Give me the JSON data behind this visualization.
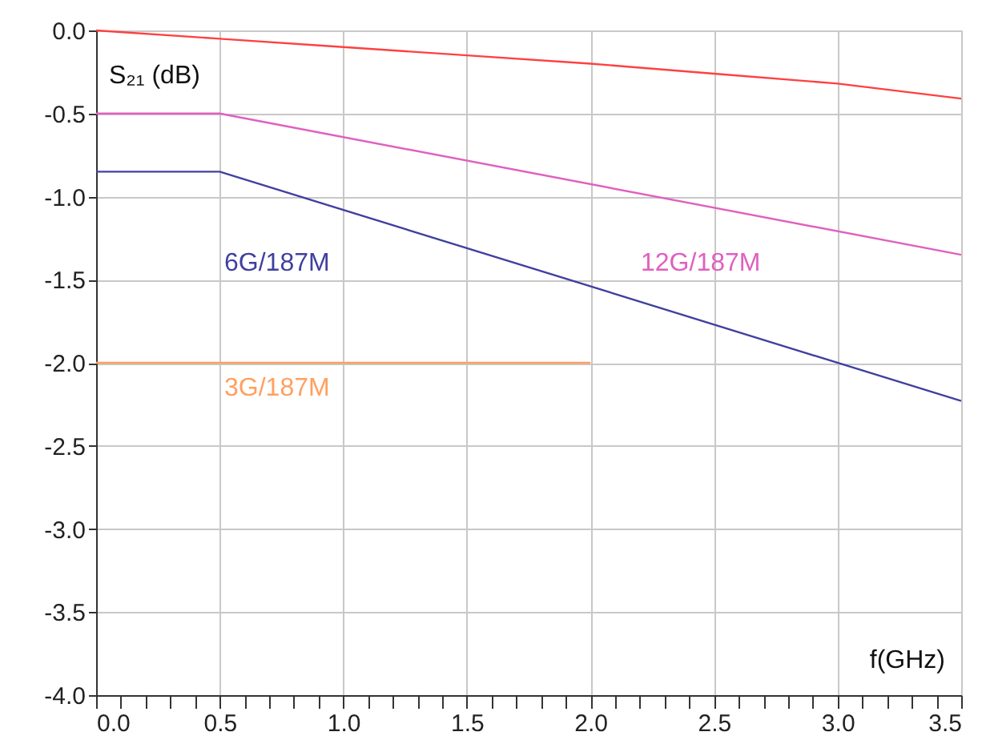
{
  "chart_data": {
    "type": "line",
    "xlabel": "f(GHz)",
    "ylabel": "S₂₁ (dB)",
    "xlim": [
      0,
      3.5
    ],
    "ylim": [
      -4.0,
      0.0
    ],
    "xticks": [
      {
        "value": 0,
        "label": "0.0"
      },
      {
        "value": 0.1,
        "label": null
      },
      {
        "value": 0.2,
        "label": null
      },
      {
        "value": 0.3,
        "label": null
      },
      {
        "value": 0.4,
        "label": null
      },
      {
        "value": 0.5,
        "label": "0.5"
      },
      {
        "value": 0.6,
        "label": null
      },
      {
        "value": 0.7,
        "label": null
      },
      {
        "value": 0.8,
        "label": null
      },
      {
        "value": 0.9,
        "label": null
      },
      {
        "value": 1,
        "label": "1.0"
      },
      {
        "value": 1.1,
        "label": null
      },
      {
        "value": 1.2,
        "label": null
      },
      {
        "value": 1.3,
        "label": null
      },
      {
        "value": 1.4,
        "label": null
      },
      {
        "value": 1.5,
        "label": "1.5"
      },
      {
        "value": 1.6,
        "label": null
      },
      {
        "value": 1.7,
        "label": null
      },
      {
        "value": 1.8,
        "label": null
      },
      {
        "value": 1.9,
        "label": null
      },
      {
        "value": 2,
        "label": "2.0"
      },
      {
        "value": 2.1,
        "label": null
      },
      {
        "value": 2.2,
        "label": null
      },
      {
        "value": 2.3,
        "label": null
      },
      {
        "value": 2.4,
        "label": null
      },
      {
        "value": 2.5,
        "label": "2.5"
      },
      {
        "value": 2.6,
        "label": null
      },
      {
        "value": 2.7,
        "label": null
      },
      {
        "value": 2.8,
        "label": null
      },
      {
        "value": 2.9,
        "label": null
      },
      {
        "value": 3,
        "label": "3.0"
      },
      {
        "value": 3.1,
        "label": null
      },
      {
        "value": 3.2,
        "label": null
      },
      {
        "value": 3.3,
        "label": null
      },
      {
        "value": 3.4,
        "label": null
      },
      {
        "value": 3.5,
        "label": "3.5"
      }
    ],
    "yticks": [
      {
        "value": 0,
        "label": "0.0"
      },
      -0.5,
      {
        "value": -1,
        "label": "-1.0"
      },
      -1.5,
      {
        "value": -2,
        "label": "-2.0"
      },
      -2.5,
      {
        "value": -3,
        "label": "-3.0"
      },
      -3.5,
      {
        "value": -4,
        "label": "-4.0"
      }
    ],
    "grid": true,
    "marker": "none",
    "line_style": "solid",
    "series": [
      {
        "color": "#ff4040",
        "x": [
          0,
          0.5,
          1.0,
          1.5,
          2.0,
          2.5,
          3.0,
          3.5
        ],
        "values": [
          0,
          -0.05,
          -0.1,
          -0.15,
          -0.2,
          -0.26,
          -0.32,
          -0.41
        ]
      },
      {
        "name": "12G/187M",
        "color": "#e060c0",
        "x": [
          0,
          0.5,
          3.5
        ],
        "values": [
          -0.5,
          -0.5,
          -1.35
        ]
      },
      {
        "name": "6G/187M",
        "color": "#4040a0",
        "x": [
          0,
          0.5,
          3.5
        ],
        "values": [
          -0.85,
          -0.85,
          -2.23
        ]
      },
      {
        "name": "3G/187M",
        "color": "#ffa060",
        "x": [
          0,
          2.0
        ],
        "values": [
          -2.0,
          -2.0
        ]
      }
    ]
  }
}
